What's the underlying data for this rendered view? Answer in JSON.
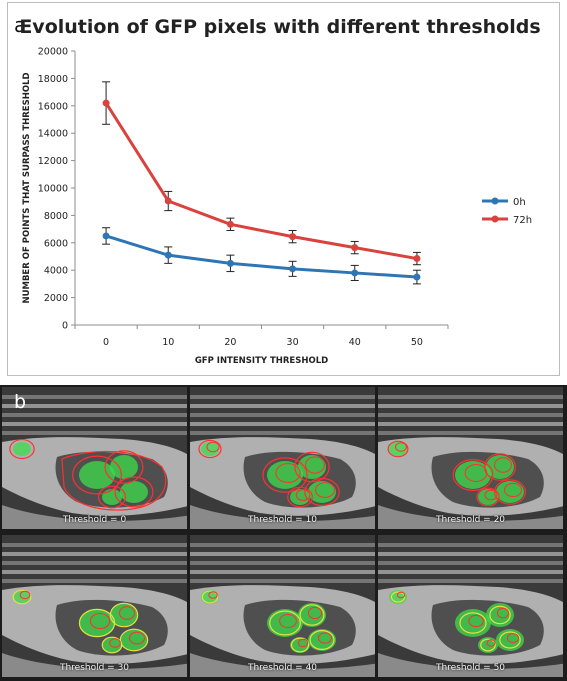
{
  "panel_a": {
    "letter": "a"
  },
  "panel_b": {
    "letter": "b",
    "thresholds": [
      {
        "label": "Threshold = 0",
        "value": 0
      },
      {
        "label": "Threshold = 10",
        "value": 10
      },
      {
        "label": "Threshold = 20",
        "value": 20
      },
      {
        "label": "Threshold = 30",
        "value": 30
      },
      {
        "label": "Threshold = 40",
        "value": 40
      },
      {
        "label": "Threshold = 50",
        "value": 50
      }
    ]
  },
  "chart_data": {
    "type": "line",
    "title": "Evolution of GFP pixels with different thresholds",
    "xlabel": "GFP INTENSITY THRESHOLD",
    "ylabel": "NUMBER OF POINTS THAT SURPASS THRESHOLD",
    "categories": [
      "0",
      "10",
      "20",
      "30",
      "40",
      "50"
    ],
    "ylim": [
      0,
      20000
    ],
    "yticks": [
      "0",
      "2000",
      "4000",
      "6000",
      "8000",
      "10000",
      "12000",
      "14000",
      "16000",
      "18000",
      "20000"
    ],
    "grid": false,
    "legend_position": "right",
    "series": [
      {
        "name": "0h",
        "color": "#2e75b6",
        "values": [
          6500,
          5100,
          4500,
          4100,
          3800,
          3500
        ],
        "errors": [
          600,
          600,
          600,
          550,
          550,
          500
        ]
      },
      {
        "name": "72h",
        "color": "#d9423d",
        "values": [
          16200,
          9050,
          7350,
          6450,
          5650,
          4850
        ],
        "errors": [
          1550,
          700,
          450,
          450,
          450,
          450
        ]
      }
    ]
  },
  "colors": {
    "axis": "#8c8c8c",
    "tick_text": "#222222",
    "title_text": "#222222",
    "gfp_green": "#3ddc4a",
    "contour_red": "#ff3030",
    "contour_yellow": "#e8e040",
    "tissue_gray": "#7a7a7a"
  }
}
